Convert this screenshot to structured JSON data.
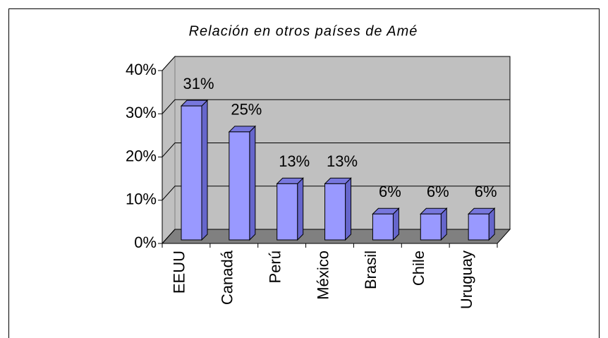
{
  "chart_data": {
    "type": "bar3d",
    "title": "Relación en otros países de Amé",
    "categories": [
      "EEUU",
      "Canadá",
      "Perú",
      "México",
      "Brasil",
      "Chile",
      "Uruguay"
    ],
    "values": [
      31,
      25,
      13,
      13,
      6,
      6,
      6
    ],
    "value_labels": [
      "31%",
      "25%",
      "13%",
      "13%",
      "6%",
      "6%",
      "6%"
    ],
    "color": "#9999ff",
    "ylim": [
      0,
      40
    ],
    "yticks": [
      {
        "value": 0,
        "label": "0%"
      },
      {
        "value": 10,
        "label": "10%"
      },
      {
        "value": 20,
        "label": "20%"
      },
      {
        "value": 30,
        "label": "30%"
      },
      {
        "value": 40,
        "label": "40%"
      }
    ],
    "grid": true
  }
}
